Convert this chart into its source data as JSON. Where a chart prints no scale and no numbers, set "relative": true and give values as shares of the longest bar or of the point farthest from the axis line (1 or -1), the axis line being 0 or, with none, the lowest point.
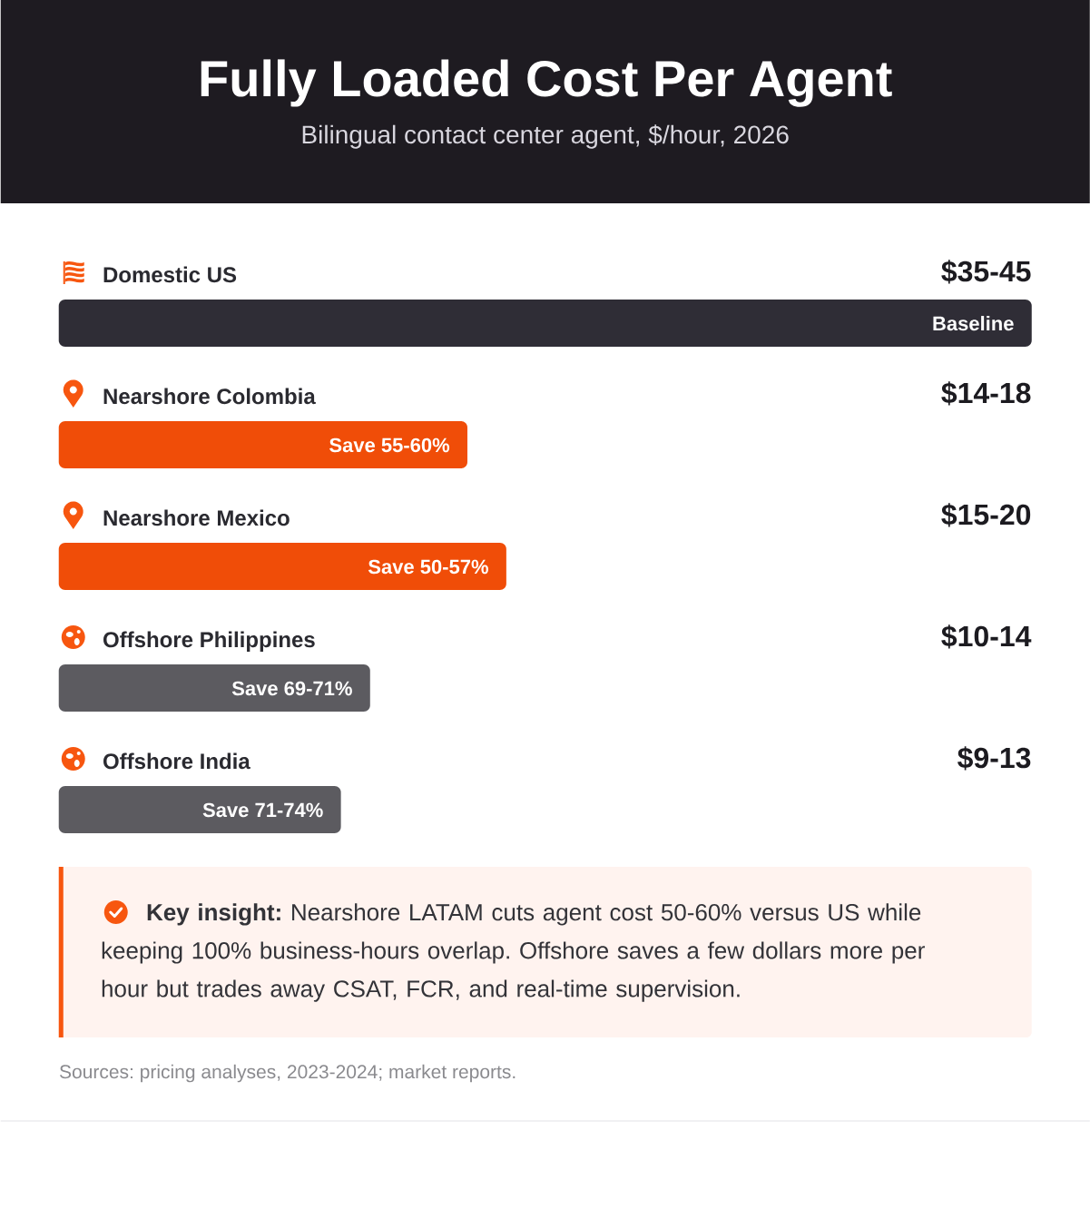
{
  "chart_data": {
    "type": "bar",
    "orientation": "horizontal",
    "relative": true,
    "title": "Fully Loaded Cost Per Agent",
    "subtitle": "Bilingual contact center agent, $/hour, 2026",
    "categories": [
      "Domestic US",
      "Nearshore Colombia",
      "Nearshore Mexico",
      "Offshore Philippines",
      "Offshore India"
    ],
    "values": [
      1,
      0.42,
      0.46,
      0.32,
      0.29
    ],
    "colors": [
      "#2f2d36",
      "#f04d08",
      "#f04d08",
      "#5c5b60",
      "#5c5b60"
    ],
    "annotations": [
      {
        "text": "Baseline",
        "x": 1,
        "y": "Domestic US"
      },
      {
        "text": "Save 55-60%",
        "x": 0.42,
        "y": "Nearshore Colombia"
      },
      {
        "text": "Save 50-57%",
        "x": 0.46,
        "y": "Nearshore Mexico"
      },
      {
        "text": "Save 69-71%",
        "x": 0.32,
        "y": "Offshore Philippines"
      },
      {
        "text": "Save 71-74%",
        "x": 0.29,
        "y": "Offshore India"
      },
      "$35-45",
      "$14-18",
      "$15-20",
      "$10-14",
      "$9-13",
      "**Key insight:** Nearshore LATAM cuts agent cost 50-60% versus US while keeping 100% business-hours overlap. Offshore saves a few dollars more per hour but trades away CSAT, FCR, and real-time supervision.",
      "Sources: pricing analyses, 2023-2024; market reports."
    ]
  }
}
